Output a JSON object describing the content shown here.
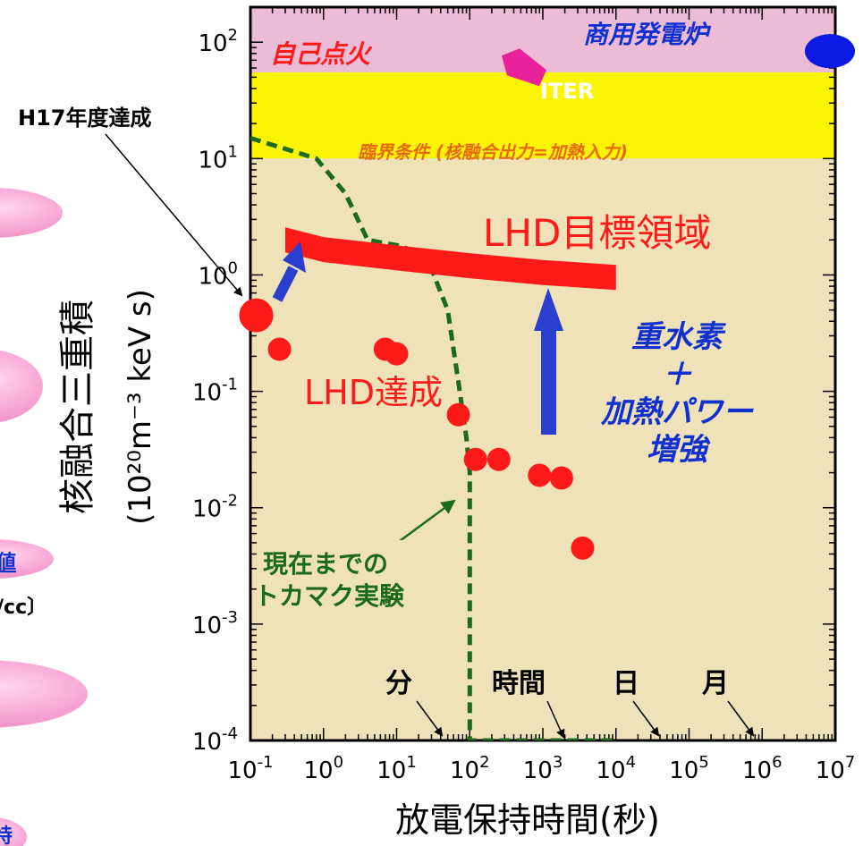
{
  "chart_data": {
    "type": "scatter",
    "xlabel": "放電保持時間(秒)",
    "ylabel_main": "核融合三重積",
    "ylabel_unit": "(10²⁰m⁻³ keV s)",
    "x_scale": "log",
    "y_scale": "log",
    "xlim": [
      0.1,
      10000000
    ],
    "ylim": [
      0.0001,
      200
    ],
    "x_ticks": [
      {
        "value": 0.1,
        "base": "10",
        "exp": "-1"
      },
      {
        "value": 1,
        "base": "10",
        "exp": "0"
      },
      {
        "value": 10,
        "base": "10",
        "exp": "1"
      },
      {
        "value": 100,
        "base": "10",
        "exp": "2"
      },
      {
        "value": 1000,
        "base": "10",
        "exp": "3"
      },
      {
        "value": 10000,
        "base": "10",
        "exp": "4"
      },
      {
        "value": 100000,
        "base": "10",
        "exp": "5"
      },
      {
        "value": 1000000,
        "base": "10",
        "exp": "6"
      },
      {
        "value": 10000000,
        "base": "10",
        "exp": "7"
      }
    ],
    "y_ticks": [
      {
        "value": 0.0001,
        "base": "10",
        "exp": "-4"
      },
      {
        "value": 0.001,
        "base": "10",
        "exp": "-3"
      },
      {
        "value": 0.01,
        "base": "10",
        "exp": "-2"
      },
      {
        "value": 0.1,
        "base": "10",
        "exp": "-1"
      },
      {
        "value": 1,
        "base": "10",
        "exp": "0"
      },
      {
        "value": 10,
        "base": "10",
        "exp": "1"
      },
      {
        "value": 100,
        "base": "10",
        "exp": "2"
      }
    ],
    "regions": [
      {
        "label": "自己点火",
        "y_range": [
          55,
          200
        ],
        "color": "#ecbcd6"
      },
      {
        "label": "臨界条件 (核融合出力=加熱入力)",
        "y_range": [
          10,
          55
        ],
        "color": "#fbf504"
      },
      {
        "label": "",
        "y_range": [
          0.0001,
          10
        ],
        "color": "#efe2b8"
      }
    ],
    "lhd_points": [
      {
        "x": 0.12,
        "y": 0.45,
        "large": true
      },
      {
        "x": 0.25,
        "y": 0.23
      },
      {
        "x": 7,
        "y": 0.23
      },
      {
        "x": 10,
        "y": 0.21
      },
      {
        "x": 70,
        "y": 0.063
      },
      {
        "x": 120,
        "y": 0.026
      },
      {
        "x": 250,
        "y": 0.026
      },
      {
        "x": 900,
        "y": 0.019
      },
      {
        "x": 1800,
        "y": 0.018
      },
      {
        "x": 3500,
        "y": 0.0045
      }
    ],
    "iter_point": {
      "x": 1000,
      "y": 45,
      "label": "ITER"
    },
    "reactor_point": {
      "x": 10000000,
      "y": 100,
      "label": "商用発電炉"
    },
    "lhd_target_band": {
      "label": "LHD目標領域",
      "x": [
        0.3,
        1,
        10,
        100,
        1000,
        10000
      ],
      "y": [
        2.0,
        1.65,
        1.4,
        1.2,
        1.05,
        0.95
      ]
    },
    "tokamak_curve": {
      "label": "現在までのトカマク実験",
      "x": [
        0.1,
        0.8,
        2,
        4,
        10,
        25,
        50,
        70,
        90,
        100,
        100,
        10000
      ],
      "y": [
        15,
        10,
        5,
        2,
        1.8,
        1.5,
        0.5,
        0.12,
        0.04,
        0.02,
        0.0001,
        0.0001
      ]
    },
    "annotations": {
      "achieved_label": "LHD達成",
      "h17_label": "H17年度達成",
      "upgrade_label": [
        "重水素",
        "＋",
        "加熱パワー",
        "増強"
      ],
      "time_markers": [
        {
          "label": "分",
          "x": 60
        },
        {
          "label": "時間",
          "x": 3600
        },
        {
          "label": "日",
          "x": 86400
        },
        {
          "label": "月",
          "x": 2592000
        }
      ]
    },
    "colors": {
      "points": "#ff1a1a",
      "target_band": "#ff1a1a",
      "tokamak": "#1c6b1c",
      "arrow_blue": "#2a3fcf",
      "iter": "#e8209a",
      "reactor": "#0a1ae0",
      "red_text": "#ff1a1a",
      "blue_text": "#1030d0",
      "orange_text": "#e86a10"
    }
  },
  "left_cropped": {
    "partial_text_1": "値",
    "partial_text_2": "/cc〕",
    "partial_text_3": "特"
  }
}
